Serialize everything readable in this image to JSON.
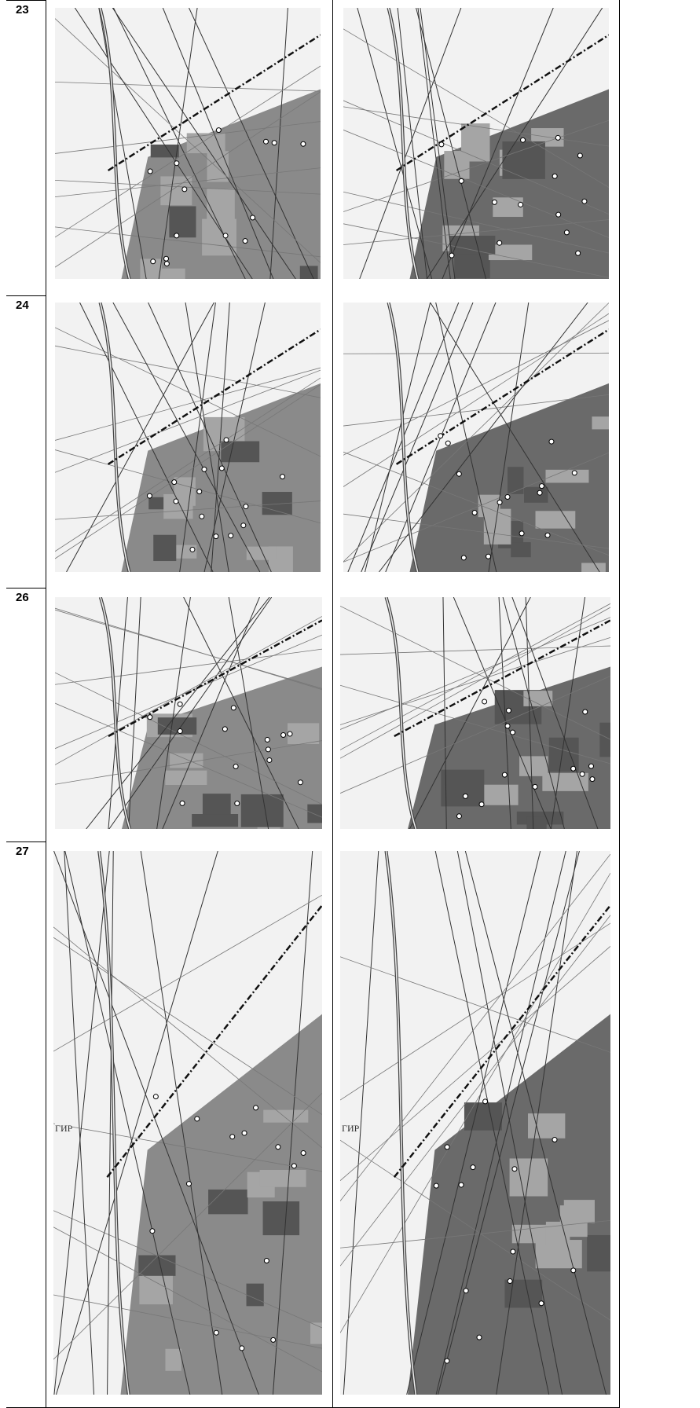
{
  "table": {
    "rows": [
      {
        "number": "23"
      },
      {
        "number": "24"
      },
      {
        "number": "26"
      },
      {
        "number": "27",
        "map_labels": [
          "ГИР",
          "ГИР"
        ]
      }
    ]
  }
}
